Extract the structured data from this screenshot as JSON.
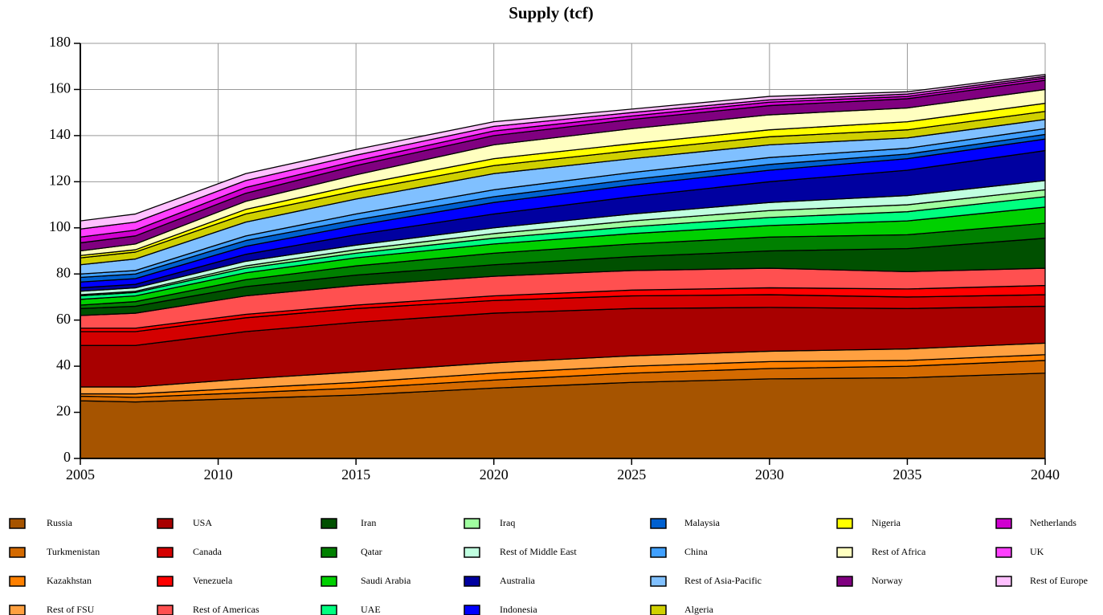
{
  "chart_data": {
    "type": "area",
    "stacked": true,
    "title": "Supply (tcf)",
    "x": [
      2005,
      2007,
      2011,
      2015,
      2020,
      2025,
      2030,
      2035,
      2040
    ],
    "xlim": [
      2005,
      2040
    ],
    "xticks": [
      2005,
      2010,
      2015,
      2020,
      2025,
      2030,
      2035,
      2040
    ],
    "ylim": [
      0,
      180
    ],
    "yticks": [
      0,
      20,
      40,
      60,
      80,
      100,
      120,
      140,
      160,
      180
    ],
    "grid": true,
    "series": [
      {
        "name": "Russia",
        "color": "#a65400",
        "values": [
          25,
          24.5,
          26,
          27.5,
          30.5,
          33,
          34.5,
          35,
          37
        ]
      },
      {
        "name": "Turkmenistan",
        "color": "#d46a00",
        "values": [
          2,
          2,
          2.5,
          3,
          3.5,
          4,
          4.5,
          5,
          5.5
        ]
      },
      {
        "name": "Kazakhstan",
        "color": "#ff8000",
        "values": [
          1,
          1.5,
          2,
          2.5,
          3,
          3,
          3,
          2.5,
          2.5
        ]
      },
      {
        "name": "Rest of FSU",
        "color": "#ffa040",
        "values": [
          3,
          3,
          4,
          4.5,
          4.5,
          4.5,
          4.5,
          5,
          5
        ]
      },
      {
        "name": "USA",
        "color": "#a80000",
        "values": [
          18,
          18,
          20.5,
          21.5,
          21.5,
          20.5,
          19,
          17.5,
          16
        ]
      },
      {
        "name": "Canada",
        "color": "#d40000",
        "values": [
          6,
          6,
          6,
          6,
          5.5,
          5.5,
          5.5,
          5,
          5
        ]
      },
      {
        "name": "Venezuela",
        "color": "#ff0000",
        "values": [
          1.5,
          1.5,
          1.5,
          1.5,
          2,
          2.5,
          3,
          3.5,
          4
        ]
      },
      {
        "name": "Rest of Americas",
        "color": "#ff5050",
        "values": [
          5.5,
          6.5,
          8,
          8.5,
          8.5,
          8.5,
          8.5,
          7.5,
          7.5
        ]
      },
      {
        "name": "Iran",
        "color": "#005000",
        "values": [
          3,
          3,
          4,
          4.5,
          5,
          6,
          7.5,
          10,
          13
        ]
      },
      {
        "name": "Qatar",
        "color": "#008000",
        "values": [
          1.5,
          2,
          3,
          4,
          5,
          5.5,
          6,
          6,
          6.5
        ]
      },
      {
        "name": "Saudi Arabia",
        "color": "#00d000",
        "values": [
          2.5,
          2.5,
          3,
          3.5,
          4,
          4.5,
          5,
          6,
          7
        ]
      },
      {
        "name": "UAE",
        "color": "#00ff80",
        "values": [
          1.5,
          1.5,
          2,
          2,
          2.5,
          3,
          3.5,
          4,
          4.5
        ]
      },
      {
        "name": "Iraq",
        "color": "#a0ffa0",
        "values": [
          0.5,
          0.5,
          1,
          1.5,
          2,
          2.5,
          3,
          3,
          3
        ]
      },
      {
        "name": "Rest of Middle East",
        "color": "#c0ffe0",
        "values": [
          1.5,
          1.5,
          2,
          2,
          2.5,
          3,
          3.5,
          4,
          4
        ]
      },
      {
        "name": "Australia",
        "color": "#0000a0",
        "values": [
          1.5,
          1.5,
          3,
          4.5,
          6,
          7.5,
          9,
          11,
          13
        ]
      },
      {
        "name": "Indonesia",
        "color": "#0000ff",
        "values": [
          2.5,
          2.5,
          3.5,
          4,
          5,
          5,
          5,
          5,
          5
        ]
      },
      {
        "name": "Malaysia",
        "color": "#0060d0",
        "values": [
          2,
          2,
          2.5,
          2.5,
          2.5,
          2.5,
          2.5,
          2,
          2
        ]
      },
      {
        "name": "China",
        "color": "#40a0ff",
        "values": [
          1.5,
          1.5,
          2,
          2.5,
          3,
          3,
          3,
          2.5,
          2.5
        ]
      },
      {
        "name": "Rest of Asia-Pacific",
        "color": "#80c0ff",
        "values": [
          4,
          5,
          6,
          6.5,
          7,
          6,
          5.5,
          4.5,
          4
        ]
      },
      {
        "name": "Algeria",
        "color": "#d0d000",
        "values": [
          3,
          3,
          3.5,
          3.5,
          3.5,
          3.5,
          3.5,
          3.5,
          3.5
        ]
      },
      {
        "name": "Nigeria",
        "color": "#ffff00",
        "values": [
          1,
          1,
          2,
          2.5,
          3,
          3,
          3,
          3.5,
          3.5
        ]
      },
      {
        "name": "Rest of Africa",
        "color": "#ffffc0",
        "values": [
          2,
          2.5,
          3.5,
          4.5,
          6,
          6.5,
          6.5,
          6,
          6
        ]
      },
      {
        "name": "Norway",
        "color": "#800080",
        "values": [
          3.5,
          3.5,
          3.5,
          4,
          4,
          4,
          4,
          4,
          4
        ]
      },
      {
        "name": "Netherlands",
        "color": "#d000d0",
        "values": [
          2.5,
          2.5,
          2.5,
          2,
          2,
          1.5,
          1.5,
          1,
          1
        ]
      },
      {
        "name": "UK",
        "color": "#ff40ff",
        "values": [
          3.5,
          3.5,
          3,
          2.5,
          2,
          1.5,
          1,
          1,
          0.7
        ]
      },
      {
        "name": "Rest of Europe",
        "color": "#ffc0ff",
        "values": [
          3.5,
          3.5,
          3,
          2.5,
          2,
          1.5,
          1.5,
          1,
          0.8
        ]
      }
    ]
  }
}
